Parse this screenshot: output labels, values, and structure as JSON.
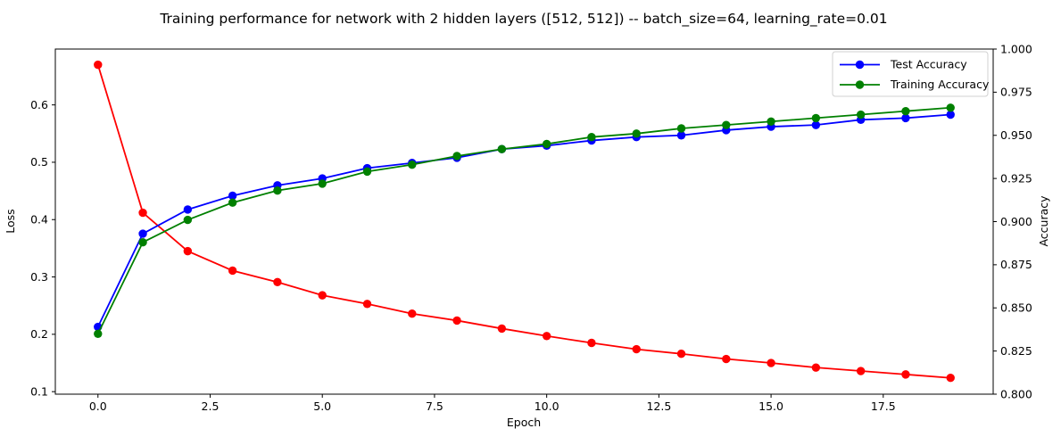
{
  "chart_data": {
    "type": "line",
    "title": "Training performance for network with 2 hidden layers ([512, 512]) -- batch_size=64, learning_rate=0.01",
    "xlabel": "Epoch",
    "ylabel_left": "Loss",
    "ylabel_right": "Accuracy",
    "x": [
      0,
      1,
      2,
      3,
      4,
      5,
      6,
      7,
      8,
      9,
      10,
      11,
      12,
      13,
      14,
      15,
      16,
      17,
      18,
      19
    ],
    "series": [
      {
        "name": "Loss",
        "axis": "left",
        "color": "#ff0000",
        "values": [
          0.67,
          0.412,
          0.345,
          0.311,
          0.291,
          0.268,
          0.253,
          0.236,
          0.224,
          0.21,
          0.197,
          0.185,
          0.174,
          0.166,
          0.157,
          0.15,
          0.142,
          0.136,
          0.13,
          0.124
        ]
      },
      {
        "name": "Test Accuracy",
        "axis": "right",
        "color": "#0000ff",
        "values": [
          0.839,
          0.893,
          0.907,
          0.915,
          0.921,
          0.925,
          0.931,
          0.934,
          0.937,
          0.942,
          0.944,
          0.947,
          0.949,
          0.95,
          0.953,
          0.955,
          0.956,
          0.959,
          0.96,
          0.962
        ]
      },
      {
        "name": "Training Accuracy",
        "axis": "right",
        "color": "#008000",
        "values": [
          0.835,
          0.888,
          0.901,
          0.911,
          0.918,
          0.922,
          0.929,
          0.933,
          0.938,
          0.942,
          0.945,
          0.949,
          0.951,
          0.954,
          0.956,
          0.958,
          0.96,
          0.962,
          0.964,
          0.966
        ]
      }
    ],
    "legend": {
      "position": "upper right",
      "entries": [
        "Test Accuracy",
        "Training Accuracy"
      ]
    },
    "grid": false,
    "xlim": [
      -0.95,
      19.95
    ],
    "loss_ylim": [
      0.0956,
      0.6974
    ],
    "acc_ylim": [
      0.8,
      1.0
    ],
    "x_ticks": [
      0,
      2.5,
      5,
      7.5,
      10,
      12.5,
      15,
      17.5
    ],
    "x_tick_labels": [
      "0.0",
      "2.5",
      "5.0",
      "7.5",
      "10.0",
      "12.5",
      "15.0",
      "17.5"
    ],
    "left_ticks": [
      0.1,
      0.2,
      0.3,
      0.4,
      0.5,
      0.6
    ],
    "left_tick_labels": [
      "0.1",
      "0.2",
      "0.3",
      "0.4",
      "0.5",
      "0.6"
    ],
    "right_ticks": [
      0.8,
      0.825,
      0.85,
      0.875,
      0.9,
      0.925,
      0.95,
      0.975,
      1.0
    ],
    "right_tick_labels": [
      "0.800",
      "0.825",
      "0.850",
      "0.875",
      "0.900",
      "0.925",
      "0.950",
      "0.975",
      "1.000"
    ],
    "colors": {
      "loss_axis_text": "#ff0000",
      "acc_tick_text": "#008000",
      "frame": "#000000",
      "legend_border": "#d0d0d0",
      "background": "#ffffff"
    }
  }
}
